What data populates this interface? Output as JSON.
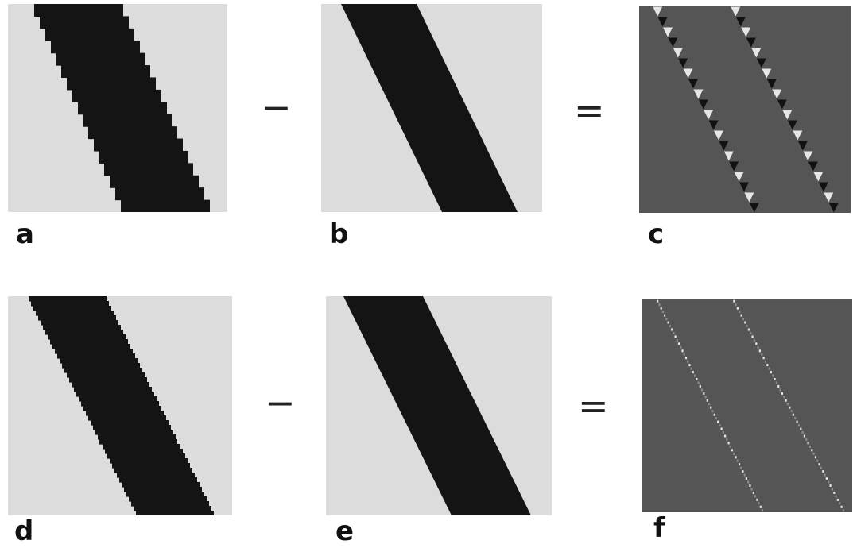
{
  "colors": {
    "background": "#dcdcdc",
    "stripe": "#141414",
    "difference": "#555555",
    "bright_error": "#e6e6e6",
    "dark_error": "#111111"
  },
  "rows": [
    {
      "panels": [
        {
          "label": "a",
          "kind": "aliased-stripe-coarse"
        },
        {
          "label": "b",
          "kind": "antialiased-stripe"
        },
        {
          "label": "c",
          "kind": "difference-coarse"
        }
      ],
      "operators": [
        "−",
        "="
      ]
    },
    {
      "panels": [
        {
          "label": "d",
          "kind": "aliased-stripe-fine"
        },
        {
          "label": "e",
          "kind": "antialiased-stripe"
        },
        {
          "label": "f",
          "kind": "difference-fine"
        }
      ],
      "operators": [
        "−",
        "="
      ]
    }
  ]
}
